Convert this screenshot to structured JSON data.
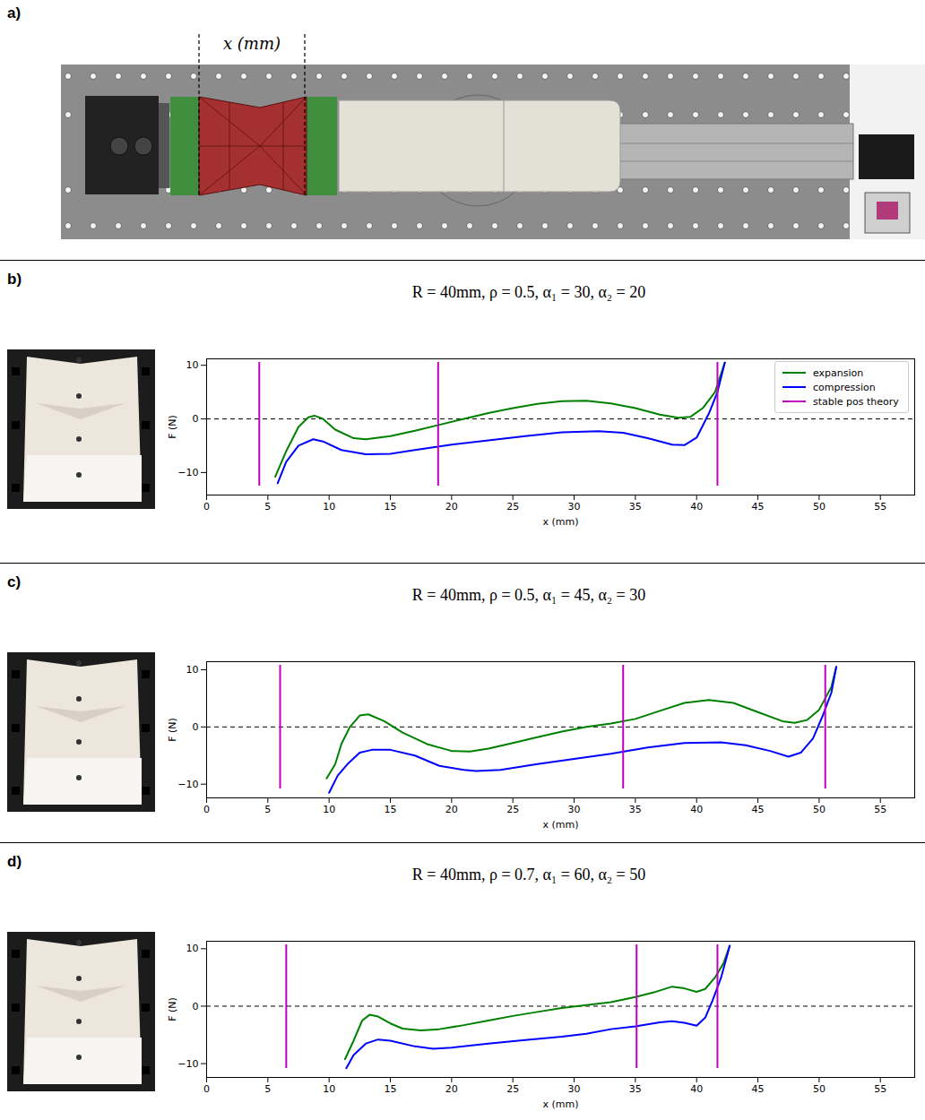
{
  "diagram": {
    "label": "a)",
    "dimension_label": "x (mm)"
  },
  "chart_data": [
    {
      "type": "line",
      "panel_label": "b)",
      "title": "R = 40mm, ρ = 0.5, α₁ = 30, α₂ = 20",
      "x_label": "x (mm)",
      "y_label": "F (N)",
      "xlim": [
        0,
        57.8
      ],
      "xticks": [
        0,
        5,
        10,
        15,
        20,
        25,
        30,
        35,
        40,
        45,
        50,
        55
      ],
      "ylim": [
        -14.2,
        11.2
      ],
      "yticks": [
        -10,
        0,
        10
      ],
      "reference_y": 0,
      "legend": "upper right",
      "series": [
        {
          "name": "expansion",
          "color": "#008000",
          "x": [
            5.6,
            6.5,
            7.5,
            8.3,
            8.8,
            9.5,
            10.5,
            12,
            13,
            15,
            17,
            19,
            21,
            23,
            25,
            27,
            29,
            31,
            33,
            35,
            37,
            38.5,
            39.5,
            40.5,
            41.5,
            42.3
          ],
          "values": [
            -10.8,
            -6,
            -1.5,
            0.3,
            0.6,
            0,
            -2,
            -3.6,
            -3.8,
            -3.2,
            -2.2,
            -1.1,
            0,
            1.1,
            2,
            2.8,
            3.3,
            3.4,
            2.9,
            2,
            0.8,
            0.2,
            0.4,
            2,
            5,
            10.5
          ]
        },
        {
          "name": "compression",
          "color": "#0000ff",
          "x": [
            5.8,
            6.5,
            7.5,
            8.7,
            9.5,
            11,
            13,
            15,
            17,
            20,
            23,
            26,
            29,
            32,
            34,
            36,
            38,
            39,
            40,
            41,
            41.7,
            42.3
          ],
          "values": [
            -12,
            -8,
            -5,
            -3.8,
            -4.2,
            -5.8,
            -6.6,
            -6.5,
            -5.8,
            -4.8,
            -4,
            -3.2,
            -2.5,
            -2.3,
            -2.6,
            -3.6,
            -4.8,
            -4.9,
            -3.5,
            1,
            5,
            10.5
          ]
        },
        {
          "name": "stable pos theory",
          "color": "#bf00bf",
          "type": "vline",
          "x": [
            4.3,
            18.9,
            41.7
          ]
        }
      ]
    },
    {
      "type": "line",
      "panel_label": "c)",
      "title": "R = 40mm, ρ = 0.5, α₁ = 45, α₂ = 30",
      "x_label": "x (mm)",
      "y_label": "F (N)",
      "xlim": [
        0,
        57.8
      ],
      "xticks": [
        0,
        5,
        10,
        15,
        20,
        25,
        30,
        35,
        40,
        45,
        50,
        55
      ],
      "ylim": [
        -12.4,
        11.4
      ],
      "yticks": [
        -10,
        0,
        10
      ],
      "reference_y": 0,
      "series": [
        {
          "name": "expansion",
          "color": "#008000",
          "x": [
            9.8,
            10.5,
            11,
            11.7,
            12.5,
            13.2,
            14.5,
            16,
            18,
            20,
            21.5,
            23,
            25,
            27,
            29,
            31,
            33,
            35,
            37,
            39,
            41,
            43,
            45,
            47,
            48,
            49,
            50,
            51,
            51.4
          ],
          "values": [
            -9,
            -6.5,
            -3,
            0,
            2,
            2.2,
            1,
            -1,
            -3,
            -4.2,
            -4.3,
            -3.8,
            -2.8,
            -1.8,
            -0.8,
            0,
            0.6,
            1.4,
            2.8,
            4.2,
            4.7,
            4.2,
            2.6,
            1,
            0.7,
            1.2,
            3,
            7,
            10.5
          ]
        },
        {
          "name": "compression",
          "color": "#0000ff",
          "x": [
            10,
            10.7,
            11.5,
            12.5,
            13.5,
            15,
            17,
            19,
            21,
            22,
            24,
            27,
            30,
            33,
            36,
            39,
            42,
            44,
            46,
            47.5,
            48.5,
            49.5,
            50.3,
            51,
            51.4
          ],
          "values": [
            -11.5,
            -8.5,
            -6.5,
            -4.5,
            -4,
            -4,
            -5,
            -6.8,
            -7.5,
            -7.7,
            -7.5,
            -6.5,
            -5.6,
            -4.7,
            -3.6,
            -2.8,
            -2.7,
            -3.2,
            -4.2,
            -5.2,
            -4.5,
            -2,
            2,
            6,
            10.5
          ]
        },
        {
          "name": "stable pos theory",
          "color": "#bf00bf",
          "type": "vline",
          "x": [
            6,
            34,
            50.5
          ]
        }
      ]
    },
    {
      "type": "line",
      "panel_label": "d)",
      "title": "R = 40mm, ρ = 0.7, α₁ = 60, α₂ = 50",
      "x_label": "x (mm)",
      "y_label": "F (N)",
      "xlim": [
        0,
        57.8
      ],
      "xticks": [
        0,
        5,
        10,
        15,
        20,
        25,
        30,
        35,
        40,
        45,
        50,
        55
      ],
      "ylim": [
        -12.4,
        11.3
      ],
      "yticks": [
        -10,
        0,
        10
      ],
      "reference_y": 0,
      "series": [
        {
          "name": "expansion",
          "color": "#008000",
          "x": [
            11.3,
            12,
            12.7,
            13.3,
            14,
            15,
            16,
            17.5,
            19,
            21,
            23,
            25,
            27,
            29,
            31,
            33,
            35,
            36.5,
            38,
            39,
            40,
            40.7,
            41.5,
            42.2,
            42.7
          ],
          "values": [
            -9.2,
            -6,
            -2.5,
            -1.5,
            -1.8,
            -3,
            -3.9,
            -4.2,
            -4,
            -3.3,
            -2.5,
            -1.7,
            -1,
            -0.3,
            0.2,
            0.7,
            1.6,
            2.4,
            3.4,
            3.1,
            2.5,
            3,
            5,
            7.5,
            10.5
          ]
        },
        {
          "name": "compression",
          "color": "#0000ff",
          "x": [
            11.4,
            12,
            13,
            14,
            15,
            17,
            18.5,
            20,
            23,
            26,
            29,
            31,
            33,
            35,
            37,
            38,
            39,
            40,
            40.7,
            41.3,
            42,
            42.7
          ],
          "values": [
            -10.8,
            -8.5,
            -6.5,
            -5.8,
            -6,
            -7,
            -7.4,
            -7.2,
            -6.5,
            -5.9,
            -5.3,
            -4.8,
            -4,
            -3.5,
            -2.8,
            -2.6,
            -2.9,
            -3.4,
            -2,
            1,
            5,
            10.5
          ]
        },
        {
          "name": "stable pos theory",
          "color": "#bf00bf",
          "type": "vline",
          "x": [
            6.5,
            35.1,
            41.7
          ]
        }
      ]
    }
  ]
}
